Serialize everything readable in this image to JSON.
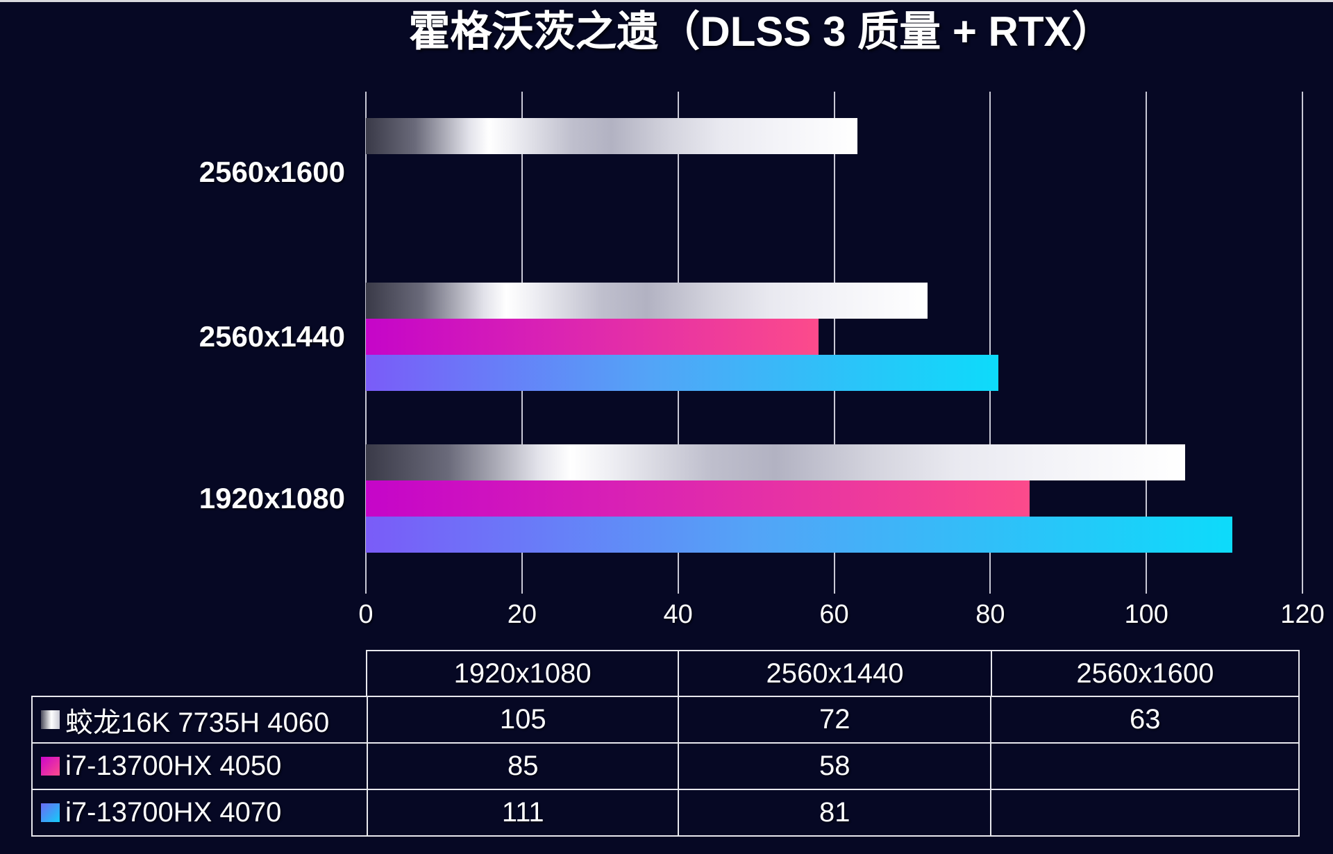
{
  "title": "霍格沃茨之遗（DLSS 3 质量 + RTX）",
  "chart_data": {
    "type": "bar",
    "orientation": "horizontal",
    "title": "霍格沃茨之遗（DLSS 3 质量 + RTX）",
    "categories": [
      "2560x1600",
      "2560x1440",
      "1920x1080"
    ],
    "series": [
      {
        "name": "蛟龙16K 7735H 4060",
        "style": "silver",
        "values": [
          63,
          72,
          105
        ]
      },
      {
        "name": "i7-13700HX 4050",
        "style": "magenta",
        "values": [
          null,
          58,
          85
        ]
      },
      {
        "name": "i7-13700HX 4070",
        "style": "blue",
        "values": [
          null,
          81,
          111
        ]
      }
    ],
    "x_ticks": [
      0,
      20,
      40,
      60,
      80,
      100,
      120
    ],
    "xlim": [
      0,
      120
    ],
    "grid": "vertical-only",
    "legend_position": "table-below-chart"
  },
  "table": {
    "columns": [
      "1920x1080",
      "2560x1440",
      "2560x1600"
    ],
    "rows": [
      {
        "label": "蛟龙16K 7735H 4060",
        "swatch": "silver",
        "values": [
          "105",
          "72",
          "63"
        ]
      },
      {
        "label": "i7-13700HX 4050",
        "swatch": "magenta",
        "values": [
          "85",
          "58",
          ""
        ]
      },
      {
        "label": "i7-13700HX 4070",
        "swatch": "blue",
        "values": [
          "111",
          "81",
          ""
        ]
      }
    ]
  },
  "colors": {
    "background": "#060824",
    "gridline": "#c9c9d6",
    "text": "#ffffff",
    "silver_dark": "#3a3a48",
    "silver_light": "#ffffff",
    "magenta_start": "#c505c9",
    "magenta_end": "#fc4b8b",
    "blue_start": "#7a5cf8",
    "blue_end": "#0ddbfa"
  }
}
